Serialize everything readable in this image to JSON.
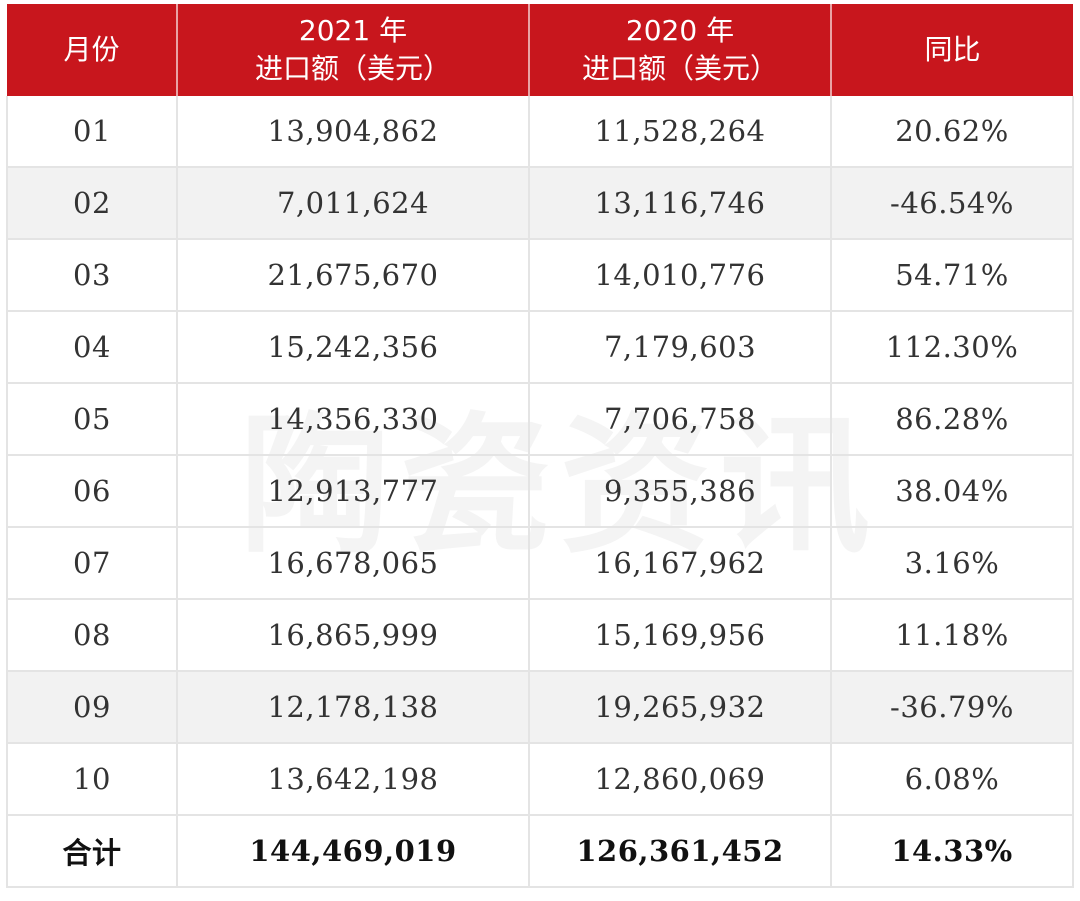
{
  "table": {
    "headers": [
      {
        "line1": "月份",
        "line2": ""
      },
      {
        "line1": "2021 年",
        "line2": "进口额（美元）"
      },
      {
        "line1": "2020 年",
        "line2": "进口额（美元）"
      },
      {
        "line1": "同比",
        "line2": ""
      }
    ],
    "rows": [
      {
        "month": "01",
        "y2021": "13,904,862",
        "y2020": "11,528,264",
        "yoy": "20.62%"
      },
      {
        "month": "02",
        "y2021": "7,011,624",
        "y2020": "13,116,746",
        "yoy": "-46.54%"
      },
      {
        "month": "03",
        "y2021": "21,675,670",
        "y2020": "14,010,776",
        "yoy": "54.71%"
      },
      {
        "month": "04",
        "y2021": "15,242,356",
        "y2020": "7,179,603",
        "yoy": "112.30%"
      },
      {
        "month": "05",
        "y2021": "14,356,330",
        "y2020": "7,706,758",
        "yoy": "86.28%"
      },
      {
        "month": "06",
        "y2021": "12,913,777",
        "y2020": "9,355,386",
        "yoy": "38.04%"
      },
      {
        "month": "07",
        "y2021": "16,678,065",
        "y2020": "16,167,962",
        "yoy": "3.16%"
      },
      {
        "month": "08",
        "y2021": "16,865,999",
        "y2020": "15,169,956",
        "yoy": "11.18%"
      },
      {
        "month": "09",
        "y2021": "12,178,138",
        "y2020": "19,265,932",
        "yoy": "-36.79%"
      },
      {
        "month": "10",
        "y2021": "13,642,198",
        "y2020": "12,860,069",
        "yoy": "6.08%"
      }
    ],
    "total": {
      "label": "合计",
      "y2021": "144,469,019",
      "y2020": "126,361,452",
      "yoy": "14.33%"
    }
  },
  "watermark": "陶瓷资讯",
  "colors": {
    "header_bg": "#c8161d",
    "header_text": "#ffffff",
    "shaded_row": "#f2f2f2"
  }
}
